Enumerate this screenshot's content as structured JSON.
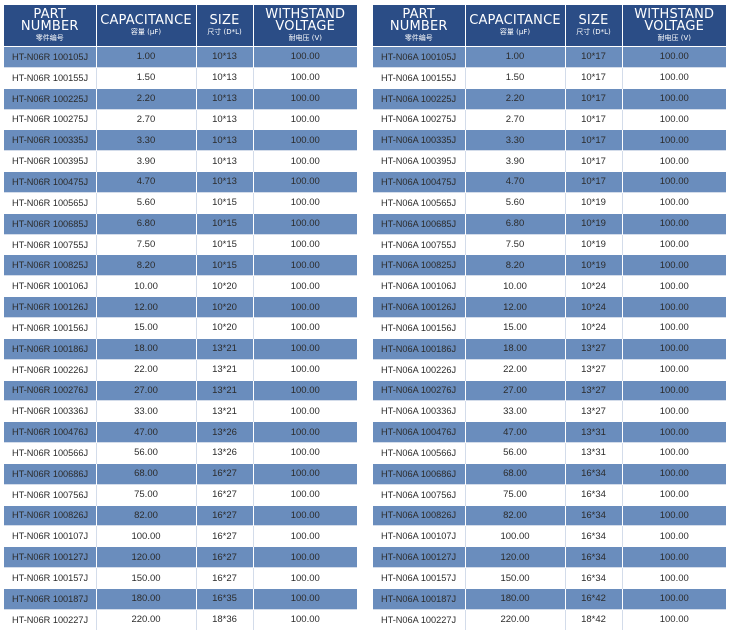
{
  "headers": {
    "part": "PART",
    "part2": "NUMBER",
    "part_cn": "零件编号",
    "cap": "CAPACITANCE",
    "cap_cn": "容量 (μF)",
    "size": "SIZE",
    "size_cn": "尺寸 (D*L)",
    "volt": "WITHSTAND",
    "volt2": "VOLTAGE",
    "volt_cn": "耐电压 (V)"
  },
  "left_rows": [
    {
      "pn": "HT-N06R 100105J",
      "cap": "1.00",
      "size": "10*13",
      "volt": "100.00"
    },
    {
      "pn": "HT-N06R 100155J",
      "cap": "1.50",
      "size": "10*13",
      "volt": "100.00"
    },
    {
      "pn": "HT-N06R 100225J",
      "cap": "2.20",
      "size": "10*13",
      "volt": "100.00"
    },
    {
      "pn": "HT-N06R 100275J",
      "cap": "2.70",
      "size": "10*13",
      "volt": "100.00"
    },
    {
      "pn": "HT-N06R 100335J",
      "cap": "3.30",
      "size": "10*13",
      "volt": "100.00"
    },
    {
      "pn": "HT-N06R 100395J",
      "cap": "3.90",
      "size": "10*13",
      "volt": "100.00"
    },
    {
      "pn": "HT-N06R 100475J",
      "cap": "4.70",
      "size": "10*13",
      "volt": "100.00"
    },
    {
      "pn": "HT-N06R 100565J",
      "cap": "5.60",
      "size": "10*15",
      "volt": "100.00"
    },
    {
      "pn": "HT-N06R 100685J",
      "cap": "6.80",
      "size": "10*15",
      "volt": "100.00"
    },
    {
      "pn": "HT-N06R 100755J",
      "cap": "7.50",
      "size": "10*15",
      "volt": "100.00"
    },
    {
      "pn": "HT-N06R 100825J",
      "cap": "8.20",
      "size": "10*15",
      "volt": "100.00"
    },
    {
      "pn": "HT-N06R 100106J",
      "cap": "10.00",
      "size": "10*20",
      "volt": "100.00"
    },
    {
      "pn": "HT-N06R 100126J",
      "cap": "12.00",
      "size": "10*20",
      "volt": "100.00"
    },
    {
      "pn": "HT-N06R 100156J",
      "cap": "15.00",
      "size": "10*20",
      "volt": "100.00"
    },
    {
      "pn": "HT-N06R 100186J",
      "cap": "18.00",
      "size": "13*21",
      "volt": "100.00"
    },
    {
      "pn": "HT-N06R 100226J",
      "cap": "22.00",
      "size": "13*21",
      "volt": "100.00"
    },
    {
      "pn": "HT-N06R 100276J",
      "cap": "27.00",
      "size": "13*21",
      "volt": "100.00"
    },
    {
      "pn": "HT-N06R 100336J",
      "cap": "33.00",
      "size": "13*21",
      "volt": "100.00"
    },
    {
      "pn": "HT-N06R 100476J",
      "cap": "47.00",
      "size": "13*26",
      "volt": "100.00"
    },
    {
      "pn": "HT-N06R 100566J",
      "cap": "56.00",
      "size": "13*26",
      "volt": "100.00"
    },
    {
      "pn": "HT-N06R 100686J",
      "cap": "68.00",
      "size": "16*27",
      "volt": "100.00"
    },
    {
      "pn": "HT-N06R 100756J",
      "cap": "75.00",
      "size": "16*27",
      "volt": "100.00"
    },
    {
      "pn": "HT-N06R 100826J",
      "cap": "82.00",
      "size": "16*27",
      "volt": "100.00"
    },
    {
      "pn": "HT-N06R 100107J",
      "cap": "100.00",
      "size": "16*27",
      "volt": "100.00"
    },
    {
      "pn": "HT-N06R 100127J",
      "cap": "120.00",
      "size": "16*27",
      "volt": "100.00"
    },
    {
      "pn": "HT-N06R 100157J",
      "cap": "150.00",
      "size": "16*27",
      "volt": "100.00"
    },
    {
      "pn": "HT-N06R 100187J",
      "cap": "180.00",
      "size": "16*35",
      "volt": "100.00"
    },
    {
      "pn": "HT-N06R 100227J",
      "cap": "220.00",
      "size": "18*36",
      "volt": "100.00"
    }
  ],
  "right_rows": [
    {
      "pn": "HT-N06A 100105J",
      "cap": "1.00",
      "size": "10*17",
      "volt": "100.00"
    },
    {
      "pn": "HT-N06A 100155J",
      "cap": "1.50",
      "size": "10*17",
      "volt": "100.00"
    },
    {
      "pn": "HT-N06A 100225J",
      "cap": "2.20",
      "size": "10*17",
      "volt": "100.00"
    },
    {
      "pn": "HT-N06A 100275J",
      "cap": "2.70",
      "size": "10*17",
      "volt": "100.00"
    },
    {
      "pn": "HT-N06A 100335J",
      "cap": "3.30",
      "size": "10*17",
      "volt": "100.00"
    },
    {
      "pn": "HT-N06A 100395J",
      "cap": "3.90",
      "size": "10*17",
      "volt": "100.00"
    },
    {
      "pn": "HT-N06A 100475J",
      "cap": "4.70",
      "size": "10*17",
      "volt": "100.00"
    },
    {
      "pn": "HT-N06A 100565J",
      "cap": "5.60",
      "size": "10*19",
      "volt": "100.00"
    },
    {
      "pn": "HT-N06A 100685J",
      "cap": "6.80",
      "size": "10*19",
      "volt": "100.00"
    },
    {
      "pn": "HT-N06A 100755J",
      "cap": "7.50",
      "size": "10*19",
      "volt": "100.00"
    },
    {
      "pn": "HT-N06A 100825J",
      "cap": "8.20",
      "size": "10*19",
      "volt": "100.00"
    },
    {
      "pn": "HT-N06A 100106J",
      "cap": "10.00",
      "size": "10*24",
      "volt": "100.00"
    },
    {
      "pn": "HT-N06A 100126J",
      "cap": "12.00",
      "size": "10*24",
      "volt": "100.00"
    },
    {
      "pn": "HT-N06A 100156J",
      "cap": "15.00",
      "size": "10*24",
      "volt": "100.00"
    },
    {
      "pn": "HT-N06A 100186J",
      "cap": "18.00",
      "size": "13*27",
      "volt": "100.00"
    },
    {
      "pn": "HT-N06A 100226J",
      "cap": "22.00",
      "size": "13*27",
      "volt": "100.00"
    },
    {
      "pn": "HT-N06A 100276J",
      "cap": "27.00",
      "size": "13*27",
      "volt": "100.00"
    },
    {
      "pn": "HT-N06A 100336J",
      "cap": "33.00",
      "size": "13*27",
      "volt": "100.00"
    },
    {
      "pn": "HT-N06A 100476J",
      "cap": "47.00",
      "size": "13*31",
      "volt": "100.00"
    },
    {
      "pn": "HT-N06A 100566J",
      "cap": "56.00",
      "size": "13*31",
      "volt": "100.00"
    },
    {
      "pn": "HT-N06A 100686J",
      "cap": "68.00",
      "size": "16*34",
      "volt": "100.00"
    },
    {
      "pn": "HT-N06A 100756J",
      "cap": "75.00",
      "size": "16*34",
      "volt": "100.00"
    },
    {
      "pn": "HT-N06A 100826J",
      "cap": "82.00",
      "size": "16*34",
      "volt": "100.00"
    },
    {
      "pn": "HT-N06A 100107J",
      "cap": "100.00",
      "size": "16*34",
      "volt": "100.00"
    },
    {
      "pn": "HT-N06A 100127J",
      "cap": "120.00",
      "size": "16*34",
      "volt": "100.00"
    },
    {
      "pn": "HT-N06A 100157J",
      "cap": "150.00",
      "size": "16*34",
      "volt": "100.00"
    },
    {
      "pn": "HT-N06A 100187J",
      "cap": "180.00",
      "size": "16*42",
      "volt": "100.00"
    },
    {
      "pn": "HT-N06A 100227J",
      "cap": "220.00",
      "size": "18*42",
      "volt": "100.00"
    }
  ]
}
